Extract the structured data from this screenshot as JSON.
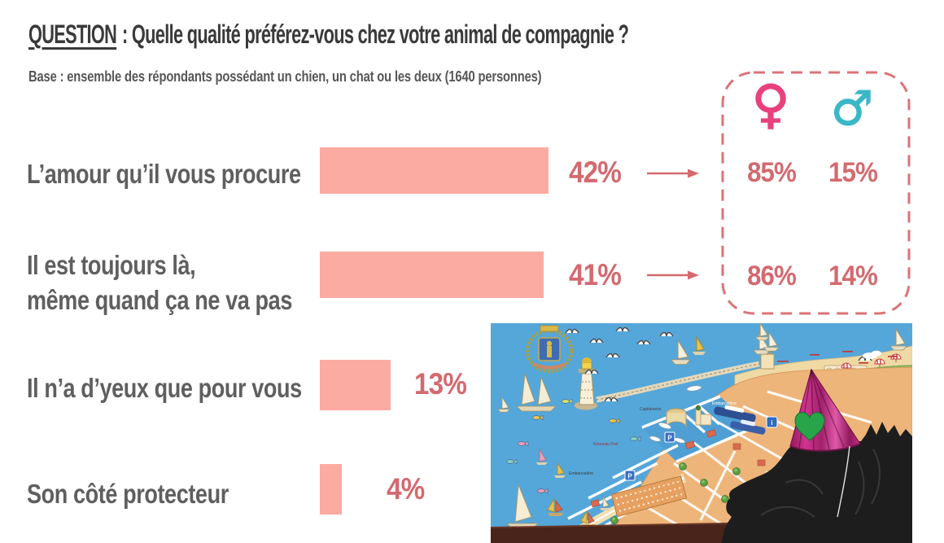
{
  "header": {
    "question_label": "QUESTION",
    "title_rest": ": Quelle qualité préférez-vous chez votre animal de compagnie ?",
    "base_note": "Base : ensemble des répondants possédant un chien, un chat ou les deux (1640 personnes)"
  },
  "chart_data": {
    "type": "bar",
    "orientation": "horizontal",
    "unit": "%",
    "xlim": [
      0,
      100
    ],
    "grid": false,
    "bar_color": "#fbaba2",
    "value_color": "#d4696f",
    "label_color": "#5f5f5f",
    "title_color": "#3a3a3a",
    "categories": [
      "L’amour qu’il vous procure",
      "Il est toujours là, même quand ça ne va pas",
      "Il n’a d’yeux que pour vous",
      "Son côté protecteur"
    ],
    "categories_lines": [
      [
        "L’amour qu’il vous procure"
      ],
      [
        "Il est toujours là,",
        "même quand ça ne va pas"
      ],
      [
        "Il n’a d’yeux que pour vous"
      ],
      [
        "Son côté protecteur"
      ]
    ],
    "values": [
      42,
      41,
      13,
      4
    ],
    "value_labels": [
      "42%",
      "41%",
      "13%",
      "4%"
    ],
    "gender_breakdown": {
      "female_symbol": "♀",
      "male_symbol": "♂",
      "female_color": "#e8417c",
      "male_color": "#3bb7c6",
      "box_border_color": "#db7377",
      "rows": [
        {
          "category": "L’amour qu’il vous procure",
          "female": "85%",
          "male": "15%"
        },
        {
          "category": "Il est toujours là, même quand ça ne va pas",
          "female": "86%",
          "male": "14%"
        }
      ]
    }
  },
  "photo": {
    "description": "Photo of a black poodle wearing a shiny magenta party hat with a green foil heart, in front of an illustrated tourist map of a Mediterranean seaside town (blue sea, sailboats, seagulls, lighthouse, jetty, orange-roofed town, harbor, green park and beach).",
    "map_labels": {
      "capitainerie": "Capitainerie",
      "embarcadere_sea": "Embarcadère",
      "embarcadere_quay": "Embarcadère",
      "nouveau_port": "Nouveau Port"
    },
    "icons": {
      "info": "i",
      "parking": "P"
    },
    "colors": {
      "sea": "#55a7d9",
      "town": "#eeb57a",
      "park": "#8cc063",
      "sand": "#f2e0b2",
      "hat": "#b81f77",
      "heart": "#28a449",
      "dog": "#1d1d1d",
      "table_edge": "#48241a"
    }
  },
  "colors": {
    "title": "#3a3a3a",
    "label": "#5f5f5f",
    "subtitle": "#575757"
  }
}
